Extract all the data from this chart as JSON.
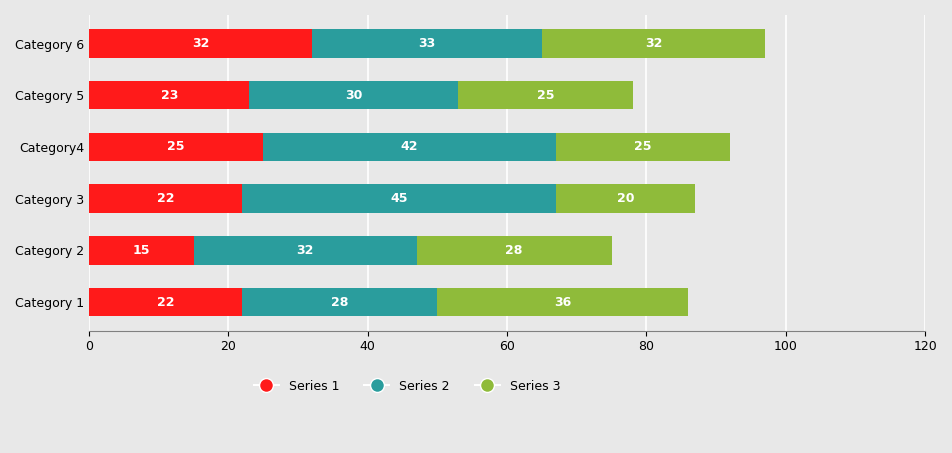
{
  "cat_labels": [
    "Category 1",
    "Category 2",
    "Category 3",
    "Category4",
    "Category 5",
    "Category 6"
  ],
  "series1": [
    22,
    15,
    22,
    25,
    23,
    32
  ],
  "series2": [
    28,
    32,
    45,
    42,
    30,
    33
  ],
  "series3": [
    36,
    28,
    20,
    25,
    25,
    32
  ],
  "color1": "#ff1a1a",
  "color2": "#2a9d9d",
  "color3": "#8fbb3a",
  "legend_labels": [
    "Series 1",
    "Series 2",
    "Series 3"
  ],
  "xlim": [
    0,
    120
  ],
  "xticks": [
    0,
    20,
    40,
    60,
    80,
    100,
    120
  ],
  "background_color": "#e8e8e8",
  "bar_height": 0.55,
  "label_fontsize": 9,
  "tick_fontsize": 9
}
